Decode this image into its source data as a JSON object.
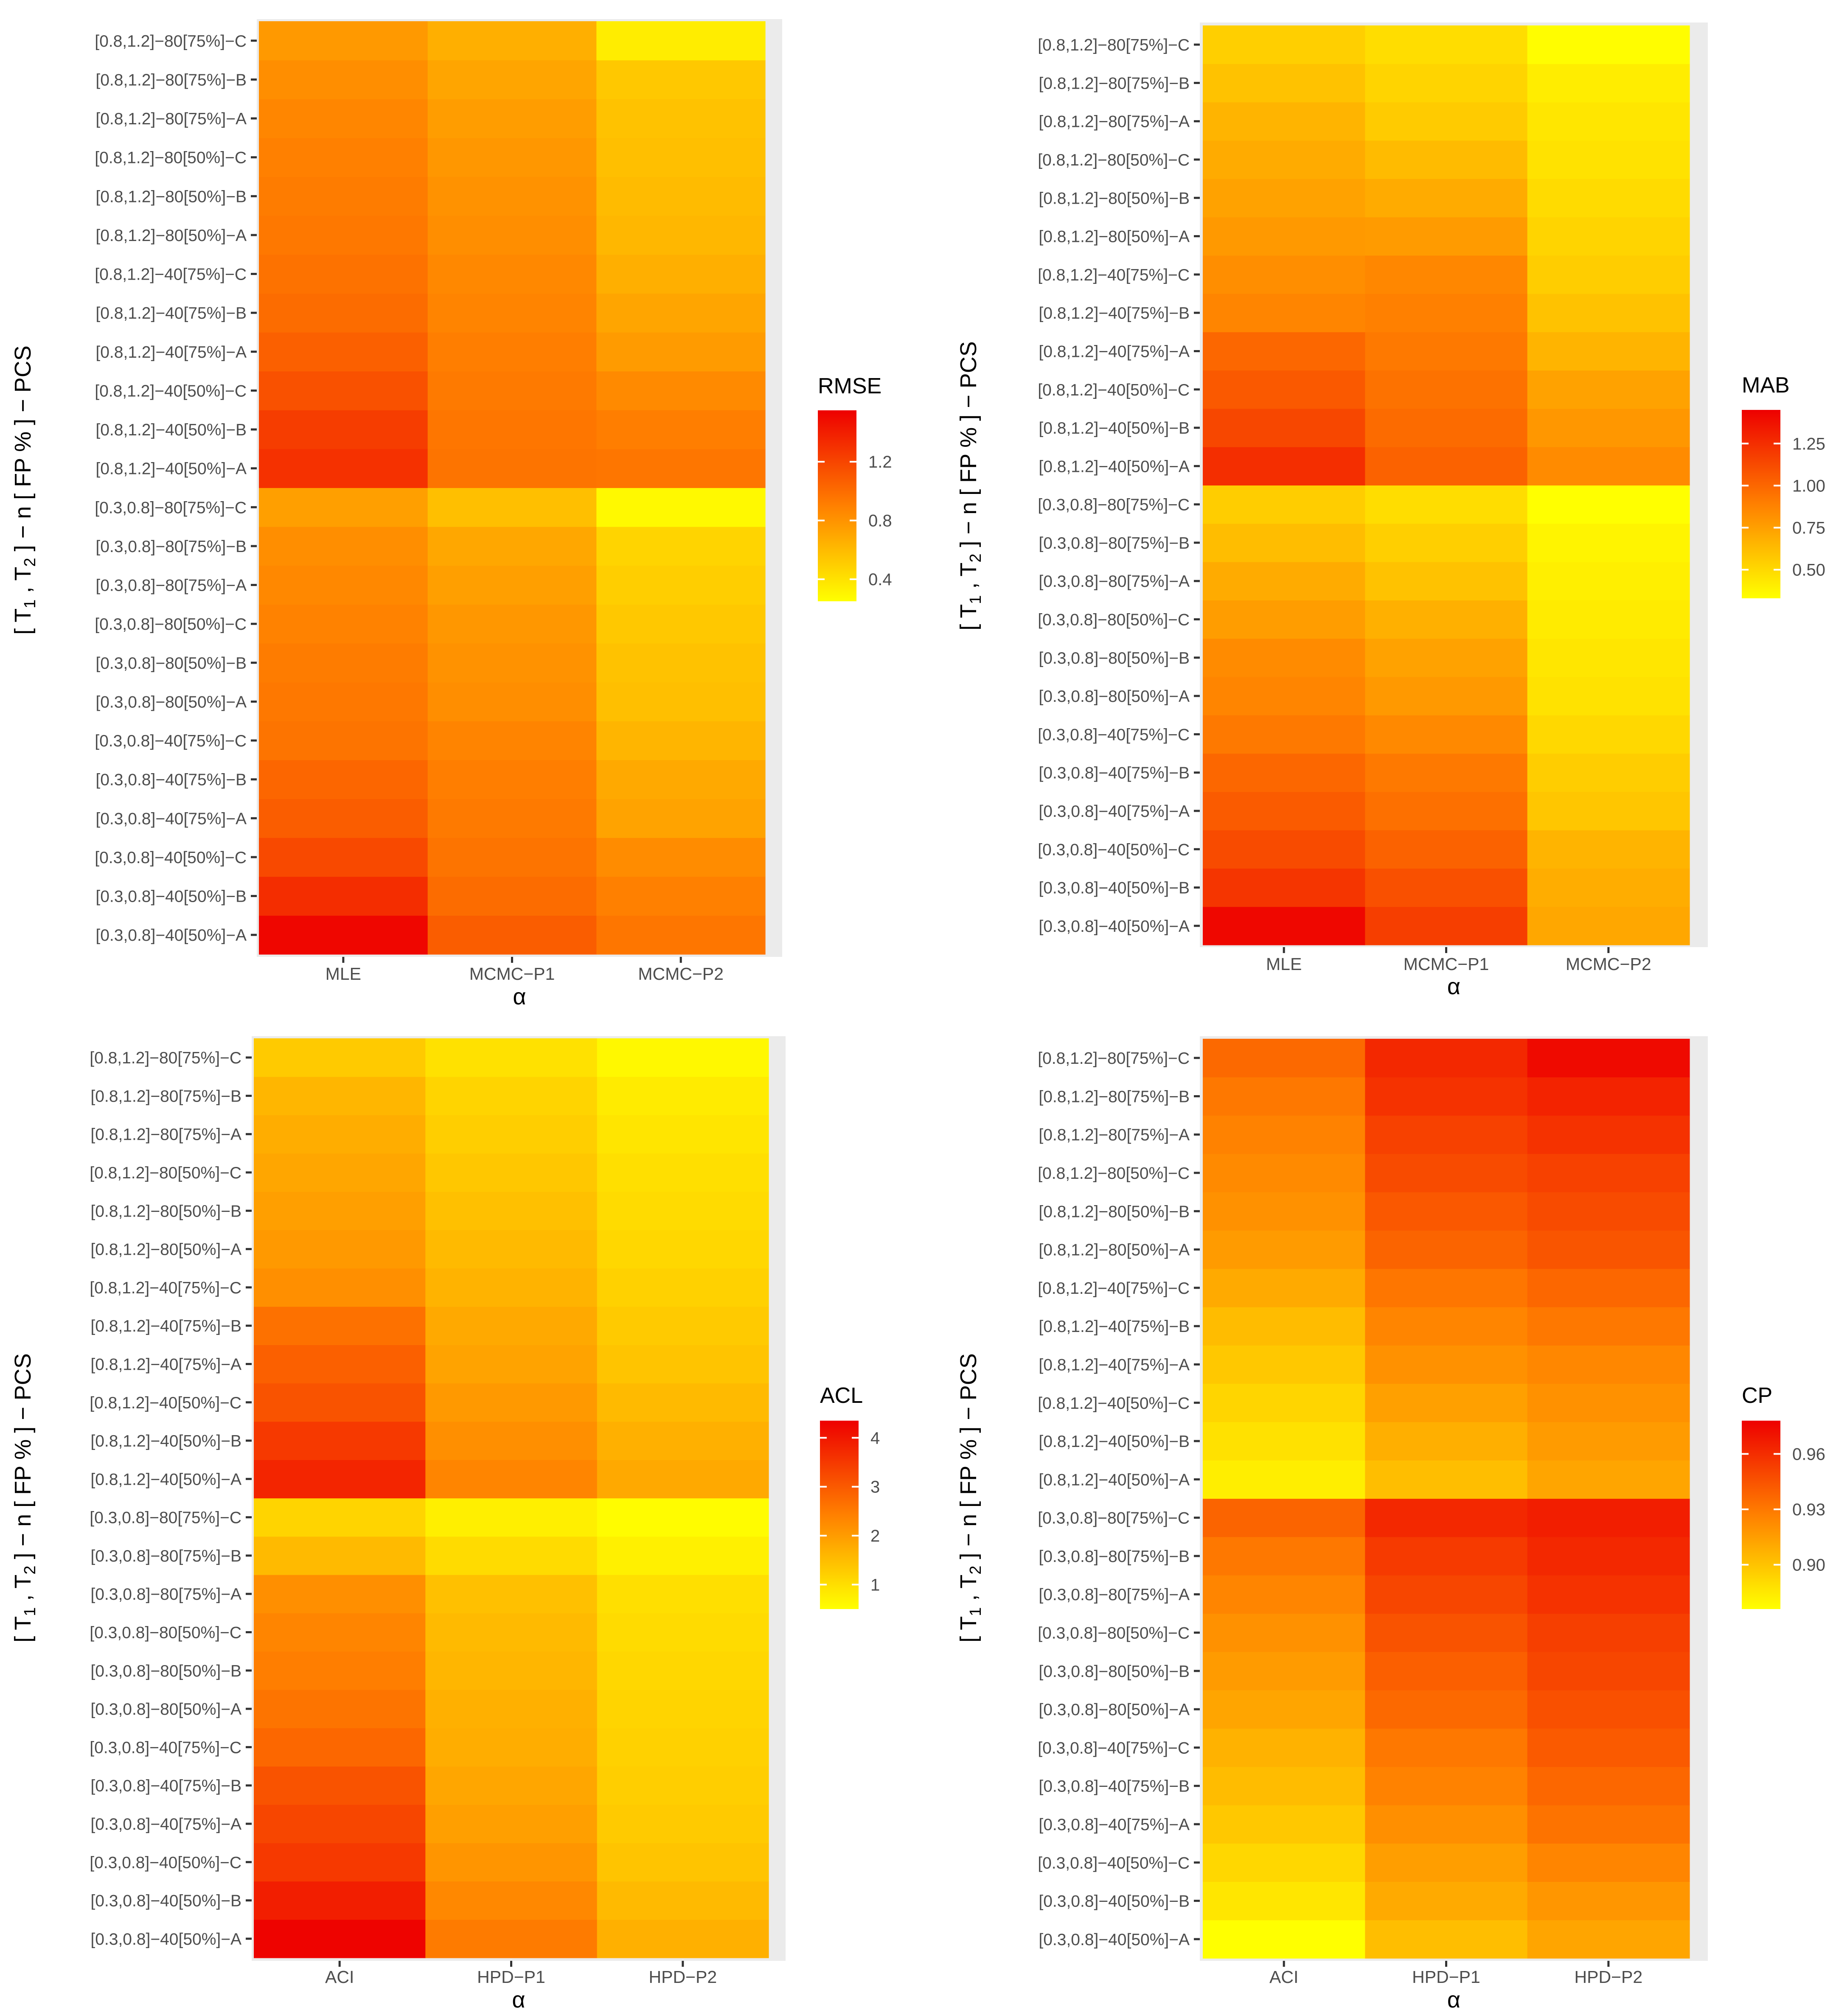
{
  "chart_data": [
    {
      "type": "heatmap",
      "metric": "RMSE",
      "xlabel": "α",
      "ylabel_parts": [
        "[ T",
        "1",
        " , T",
        "2",
        " ] − n [ FP % ] − PCS"
      ],
      "x": [
        "MLE",
        "MCMC−P1",
        "MCMC−P2"
      ],
      "y": [
        "[0.3,0.8]−40[50%]−A",
        "[0.3,0.8]−40[50%]−B",
        "[0.3,0.8]−40[50%]−C",
        "[0.3,0.8]−40[75%]−A",
        "[0.3,0.8]−40[75%]−B",
        "[0.3,0.8]−40[75%]−C",
        "[0.3,0.8]−80[50%]−A",
        "[0.3,0.8]−80[50%]−B",
        "[0.3,0.8]−80[50%]−C",
        "[0.3,0.8]−80[75%]−A",
        "[0.3,0.8]−80[75%]−B",
        "[0.3,0.8]−80[75%]−C",
        "[0.8,1.2]−40[50%]−A",
        "[0.8,1.2]−40[50%]−B",
        "[0.8,1.2]−40[50%]−C",
        "[0.8,1.2]−40[75%]−A",
        "[0.8,1.2]−40[75%]−B",
        "[0.8,1.2]−40[75%]−C",
        "[0.8,1.2]−80[50%]−A",
        "[0.8,1.2]−80[50%]−B",
        "[0.8,1.2]−80[50%]−C",
        "[0.8,1.2]−80[75%]−A",
        "[0.8,1.2]−80[75%]−B",
        "[0.8,1.2]−80[75%]−C"
      ],
      "values": [
        [
          1.52,
          1.08,
          0.95
        ],
        [
          1.32,
          1.0,
          0.9
        ],
        [
          1.18,
          0.96,
          0.84
        ],
        [
          1.08,
          0.93,
          0.72
        ],
        [
          1.03,
          0.91,
          0.69
        ],
        [
          0.96,
          0.88,
          0.63
        ],
        [
          0.94,
          0.83,
          0.58
        ],
        [
          0.92,
          0.81,
          0.56
        ],
        [
          0.89,
          0.78,
          0.53
        ],
        [
          0.86,
          0.74,
          0.5
        ],
        [
          0.83,
          0.7,
          0.47
        ],
        [
          0.74,
          0.58,
          0.28
        ],
        [
          1.3,
          0.96,
          0.95
        ],
        [
          1.24,
          0.95,
          0.91
        ],
        [
          1.14,
          0.93,
          0.85
        ],
        [
          1.06,
          0.91,
          0.76
        ],
        [
          1.0,
          0.88,
          0.71
        ],
        [
          0.97,
          0.86,
          0.66
        ],
        [
          0.94,
          0.83,
          0.62
        ],
        [
          0.92,
          0.81,
          0.6
        ],
        [
          0.9,
          0.78,
          0.58
        ],
        [
          0.87,
          0.75,
          0.56
        ],
        [
          0.83,
          0.71,
          0.53
        ],
        [
          0.77,
          0.66,
          0.34
        ]
      ],
      "legend": {
        "title": "RMSE",
        "min": 0.25,
        "max": 1.55,
        "ticks": [
          0.4,
          0.8,
          1.2
        ],
        "tick_labels": [
          "0.4",
          "0.8",
          "1.2"
        ]
      }
    },
    {
      "type": "heatmap",
      "metric": "MAB",
      "xlabel": "α",
      "ylabel_parts": [
        "[ T",
        "1",
        " , T",
        "2",
        " ] − n [ FP % ] − PCS"
      ],
      "x": [
        "MLE",
        "MCMC−P1",
        "MCMC−P2"
      ],
      "y": [
        "[0.3,0.8]−40[50%]−A",
        "[0.3,0.8]−40[50%]−B",
        "[0.3,0.8]−40[50%]−C",
        "[0.3,0.8]−40[75%]−A",
        "[0.3,0.8]−40[75%]−B",
        "[0.3,0.8]−40[75%]−C",
        "[0.3,0.8]−80[50%]−A",
        "[0.3,0.8]−80[50%]−B",
        "[0.3,0.8]−80[50%]−C",
        "[0.3,0.8]−80[75%]−A",
        "[0.3,0.8]−80[75%]−B",
        "[0.3,0.8]−80[75%]−C",
        "[0.8,1.2]−40[50%]−A",
        "[0.8,1.2]−40[50%]−B",
        "[0.8,1.2]−40[50%]−C",
        "[0.8,1.2]−40[75%]−A",
        "[0.8,1.2]−40[75%]−B",
        "[0.8,1.2]−40[75%]−C",
        "[0.8,1.2]−80[50%]−A",
        "[0.8,1.2]−80[50%]−B",
        "[0.8,1.2]−80[50%]−C",
        "[0.8,1.2]−80[75%]−A",
        "[0.8,1.2]−80[75%]−B",
        "[0.8,1.2]−80[75%]−C"
      ],
      "values": [
        [
          1.42,
          1.18,
          0.72
        ],
        [
          1.22,
          1.1,
          0.69
        ],
        [
          1.12,
          1.02,
          0.66
        ],
        [
          1.05,
          0.96,
          0.58
        ],
        [
          1.0,
          0.92,
          0.55
        ],
        [
          0.92,
          0.85,
          0.5
        ],
        [
          0.87,
          0.78,
          0.46
        ],
        [
          0.84,
          0.74,
          0.44
        ],
        [
          0.76,
          0.68,
          0.42
        ],
        [
          0.7,
          0.6,
          0.4
        ],
        [
          0.62,
          0.54,
          0.38
        ],
        [
          0.55,
          0.48,
          0.33
        ],
        [
          1.25,
          1.02,
          0.84
        ],
        [
          1.14,
          0.98,
          0.79
        ],
        [
          1.06,
          0.95,
          0.74
        ],
        [
          1.0,
          0.92,
          0.66
        ],
        [
          0.87,
          0.89,
          0.6
        ],
        [
          0.83,
          0.86,
          0.55
        ],
        [
          0.78,
          0.77,
          0.52
        ],
        [
          0.74,
          0.7,
          0.49
        ],
        [
          0.7,
          0.63,
          0.46
        ],
        [
          0.66,
          0.56,
          0.44
        ],
        [
          0.6,
          0.52,
          0.41
        ],
        [
          0.54,
          0.48,
          0.34
        ]
      ],
      "legend": {
        "title": "MAB",
        "min": 0.33,
        "max": 1.45,
        "ticks": [
          0.5,
          0.75,
          1.0,
          1.25
        ],
        "tick_labels": [
          "0.50",
          "0.75",
          "1.00",
          "1.25"
        ]
      }
    },
    {
      "type": "heatmap",
      "metric": "ACL",
      "xlabel": "α",
      "ylabel_parts": [
        "[ T",
        "1",
        " , T",
        "2",
        " ] − n [ FP % ] − PCS"
      ],
      "x": [
        "ACI",
        "HPD−P1",
        "HPD−P2"
      ],
      "y": [
        "[0.3,0.8]−40[50%]−A",
        "[0.3,0.8]−40[50%]−B",
        "[0.3,0.8]−40[50%]−C",
        "[0.3,0.8]−40[75%]−A",
        "[0.3,0.8]−40[75%]−B",
        "[0.3,0.8]−40[75%]−C",
        "[0.3,0.8]−80[50%]−A",
        "[0.3,0.8]−80[50%]−B",
        "[0.3,0.8]−80[50%]−C",
        "[0.3,0.8]−80[75%]−A",
        "[0.3,0.8]−80[75%]−B",
        "[0.3,0.8]−80[75%]−C",
        "[0.8,1.2]−40[50%]−A",
        "[0.8,1.2]−40[50%]−B",
        "[0.8,1.2]−40[50%]−C",
        "[0.8,1.2]−40[75%]−A",
        "[0.8,1.2]−40[75%]−B",
        "[0.8,1.2]−40[75%]−C",
        "[0.8,1.2]−80[50%]−A",
        "[0.8,1.2]−80[50%]−B",
        "[0.8,1.2]−80[50%]−C",
        "[0.8,1.2]−80[75%]−A",
        "[0.8,1.2]−80[75%]−B",
        "[0.8,1.2]−80[75%]−C"
      ],
      "values": [
        [
          4.3,
          2.5,
          1.7
        ],
        [
          3.9,
          2.3,
          1.55
        ],
        [
          3.5,
          2.1,
          1.4
        ],
        [
          3.3,
          1.95,
          1.3
        ],
        [
          3.1,
          1.85,
          1.25
        ],
        [
          2.8,
          1.75,
          1.2
        ],
        [
          2.6,
          1.7,
          1.15
        ],
        [
          2.45,
          1.6,
          1.1
        ],
        [
          2.35,
          1.55,
          1.05
        ],
        [
          2.2,
          1.45,
          0.98
        ],
        [
          1.55,
          1.05,
          0.72
        ],
        [
          1.15,
          0.75,
          0.55
        ],
        [
          3.8,
          2.35,
          1.8
        ],
        [
          3.5,
          2.2,
          1.7
        ],
        [
          3.1,
          2.05,
          1.55
        ],
        [
          2.9,
          1.9,
          1.4
        ],
        [
          2.65,
          1.8,
          1.3
        ],
        [
          2.2,
          1.65,
          1.2
        ],
        [
          2.05,
          1.55,
          1.1
        ],
        [
          1.95,
          1.45,
          1.05
        ],
        [
          1.85,
          1.35,
          0.98
        ],
        [
          1.75,
          1.25,
          0.9
        ],
        [
          1.6,
          1.15,
          0.8
        ],
        [
          1.3,
          0.95,
          0.6
        ]
      ],
      "legend": {
        "title": "ACL",
        "min": 0.5,
        "max": 4.35,
        "ticks": [
          1,
          2,
          3,
          4
        ],
        "tick_labels": [
          "1",
          "2",
          "3",
          "4"
        ]
      }
    },
    {
      "type": "heatmap",
      "metric": "CP",
      "xlabel": "α",
      "ylabel_parts": [
        "[ T",
        "1",
        " , T",
        "2",
        " ] − n [ FP % ] − PCS"
      ],
      "x": [
        "ACI",
        "HPD−P1",
        "HPD−P2"
      ],
      "y": [
        "[0.3,0.8]−40[50%]−A",
        "[0.3,0.8]−40[50%]−B",
        "[0.3,0.8]−40[50%]−C",
        "[0.3,0.8]−40[75%]−A",
        "[0.3,0.8]−40[75%]−B",
        "[0.3,0.8]−40[75%]−C",
        "[0.3,0.8]−80[50%]−A",
        "[0.3,0.8]−80[50%]−B",
        "[0.3,0.8]−80[50%]−C",
        "[0.3,0.8]−80[75%]−A",
        "[0.3,0.8]−80[75%]−B",
        "[0.3,0.8]−80[75%]−C",
        "[0.8,1.2]−40[50%]−A",
        "[0.8,1.2]−40[50%]−B",
        "[0.8,1.2]−40[50%]−C",
        "[0.8,1.2]−40[75%]−A",
        "[0.8,1.2]−40[75%]−B",
        "[0.8,1.2]−40[75%]−C",
        "[0.8,1.2]−80[50%]−A",
        "[0.8,1.2]−80[50%]−B",
        "[0.8,1.2]−80[50%]−C",
        "[0.8,1.2]−80[75%]−A",
        "[0.8,1.2]−80[75%]−B",
        "[0.8,1.2]−80[75%]−C"
      ],
      "values": [
        [
          0.876,
          0.902,
          0.912
        ],
        [
          0.886,
          0.91,
          0.918
        ],
        [
          0.892,
          0.915,
          0.925
        ],
        [
          0.898,
          0.921,
          0.932
        ],
        [
          0.903,
          0.926,
          0.937
        ],
        [
          0.907,
          0.93,
          0.942
        ],
        [
          0.912,
          0.936,
          0.946
        ],
        [
          0.916,
          0.94,
          0.95
        ],
        [
          0.92,
          0.945,
          0.953
        ],
        [
          0.925,
          0.95,
          0.958
        ],
        [
          0.93,
          0.955,
          0.962
        ],
        [
          0.938,
          0.962,
          0.966
        ],
        [
          0.883,
          0.902,
          0.912
        ],
        [
          0.888,
          0.908,
          0.916
        ],
        [
          0.893,
          0.914,
          0.92
        ],
        [
          0.898,
          0.92,
          0.924
        ],
        [
          0.903,
          0.925,
          0.93
        ],
        [
          0.91,
          0.931,
          0.937
        ],
        [
          0.916,
          0.938,
          0.944
        ],
        [
          0.92,
          0.943,
          0.948
        ],
        [
          0.923,
          0.948,
          0.952
        ],
        [
          0.926,
          0.952,
          0.958
        ],
        [
          0.93,
          0.958,
          0.964
        ],
        [
          0.936,
          0.962,
          0.974
        ]
      ],
      "legend": {
        "title": "CP",
        "min": 0.876,
        "max": 0.978,
        "ticks": [
          0.9,
          0.93,
          0.96
        ],
        "tick_labels": [
          "0.90",
          "0.93",
          "0.96"
        ]
      }
    }
  ]
}
